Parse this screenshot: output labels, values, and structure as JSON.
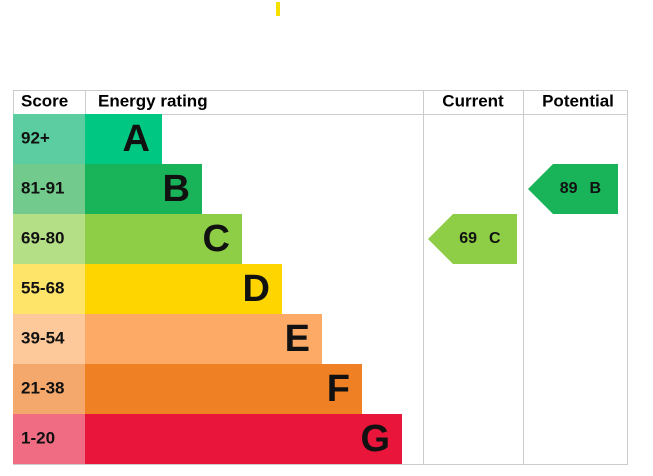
{
  "header": {
    "score": "Score",
    "energy_rating": "Energy rating",
    "current": "Current",
    "potential": "Potential"
  },
  "rows": [
    {
      "score": "92+",
      "letter": "A",
      "color": "#00c781",
      "score_color": "#5ccda1"
    },
    {
      "score": "81-91",
      "letter": "B",
      "color": "#19b459",
      "score_color": "#72ca8d"
    },
    {
      "score": "69-80",
      "letter": "C",
      "color": "#8dce46",
      "score_color": "#b4df87"
    },
    {
      "score": "55-68",
      "letter": "D",
      "color": "#ffd500",
      "score_color": "#ffe46a"
    },
    {
      "score": "39-54",
      "letter": "E",
      "color": "#fcaa65",
      "score_color": "#fdc99a"
    },
    {
      "score": "21-38",
      "letter": "F",
      "color": "#ef8023",
      "score_color": "#f4a86b"
    },
    {
      "score": "1-20",
      "letter": "G",
      "color": "#e9153b",
      "score_color": "#ef6c83"
    }
  ],
  "current": {
    "value": 69,
    "letter": "C"
  },
  "potential": {
    "value": 89,
    "letter": "B"
  }
}
